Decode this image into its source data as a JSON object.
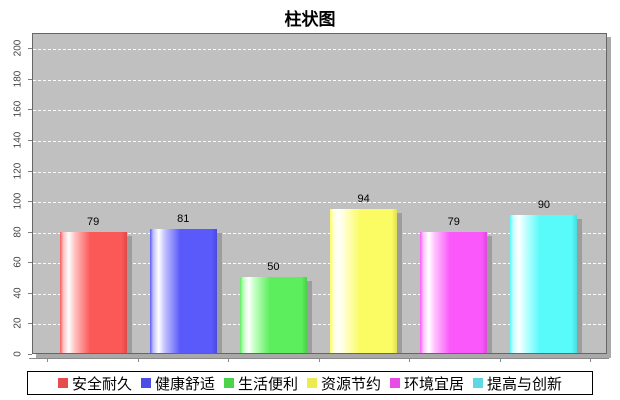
{
  "title": "柱状图",
  "chart_data": {
    "type": "bar",
    "title": "柱状图",
    "categories": [
      "安全耐久",
      "健康舒适",
      "生活便利",
      "资源节约",
      "环境宜居",
      "提高与创新"
    ],
    "values": [
      79,
      81,
      50,
      94,
      79,
      90
    ],
    "xlabel": "",
    "ylabel": "",
    "ylim": [
      0,
      210
    ],
    "yticks": [
      0,
      20,
      40,
      60,
      80,
      100,
      120,
      140,
      160,
      180,
      200
    ],
    "grid": "horizontal white dashed",
    "legend_position": "bottom",
    "plot_bg": "#c0c0c0",
    "series": [
      {
        "name": "安全耐久",
        "value": 79,
        "bar_main": "#fb5858",
        "bar_light": "#ffc2c2",
        "bar_dark": "#e04848",
        "swatch": "#e74c4c"
      },
      {
        "name": "健康舒适",
        "value": 81,
        "bar_main": "#5a5afa",
        "bar_light": "#c2c2ff",
        "bar_dark": "#4848e0",
        "swatch": "#4c4ce7"
      },
      {
        "name": "生活便利",
        "value": 50,
        "bar_main": "#5cee5c",
        "bar_light": "#c2ffc2",
        "bar_dark": "#48d048",
        "swatch": "#4cd34c"
      },
      {
        "name": "资源节约",
        "value": 94,
        "bar_main": "#fbfb64",
        "bar_light": "#ffffcf",
        "bar_dark": "#e0e052",
        "swatch": "#ecec52"
      },
      {
        "name": "环境宜居",
        "value": 79,
        "bar_main": "#fa58fa",
        "bar_light": "#ffc2ff",
        "bar_dark": "#dd48dd",
        "swatch": "#e74ce7"
      },
      {
        "name": "提高与创新",
        "value": 90,
        "bar_main": "#58fafa",
        "bar_light": "#c9ffff",
        "bar_dark": "#48dddd",
        "swatch": "#5fd7e4"
      }
    ]
  }
}
